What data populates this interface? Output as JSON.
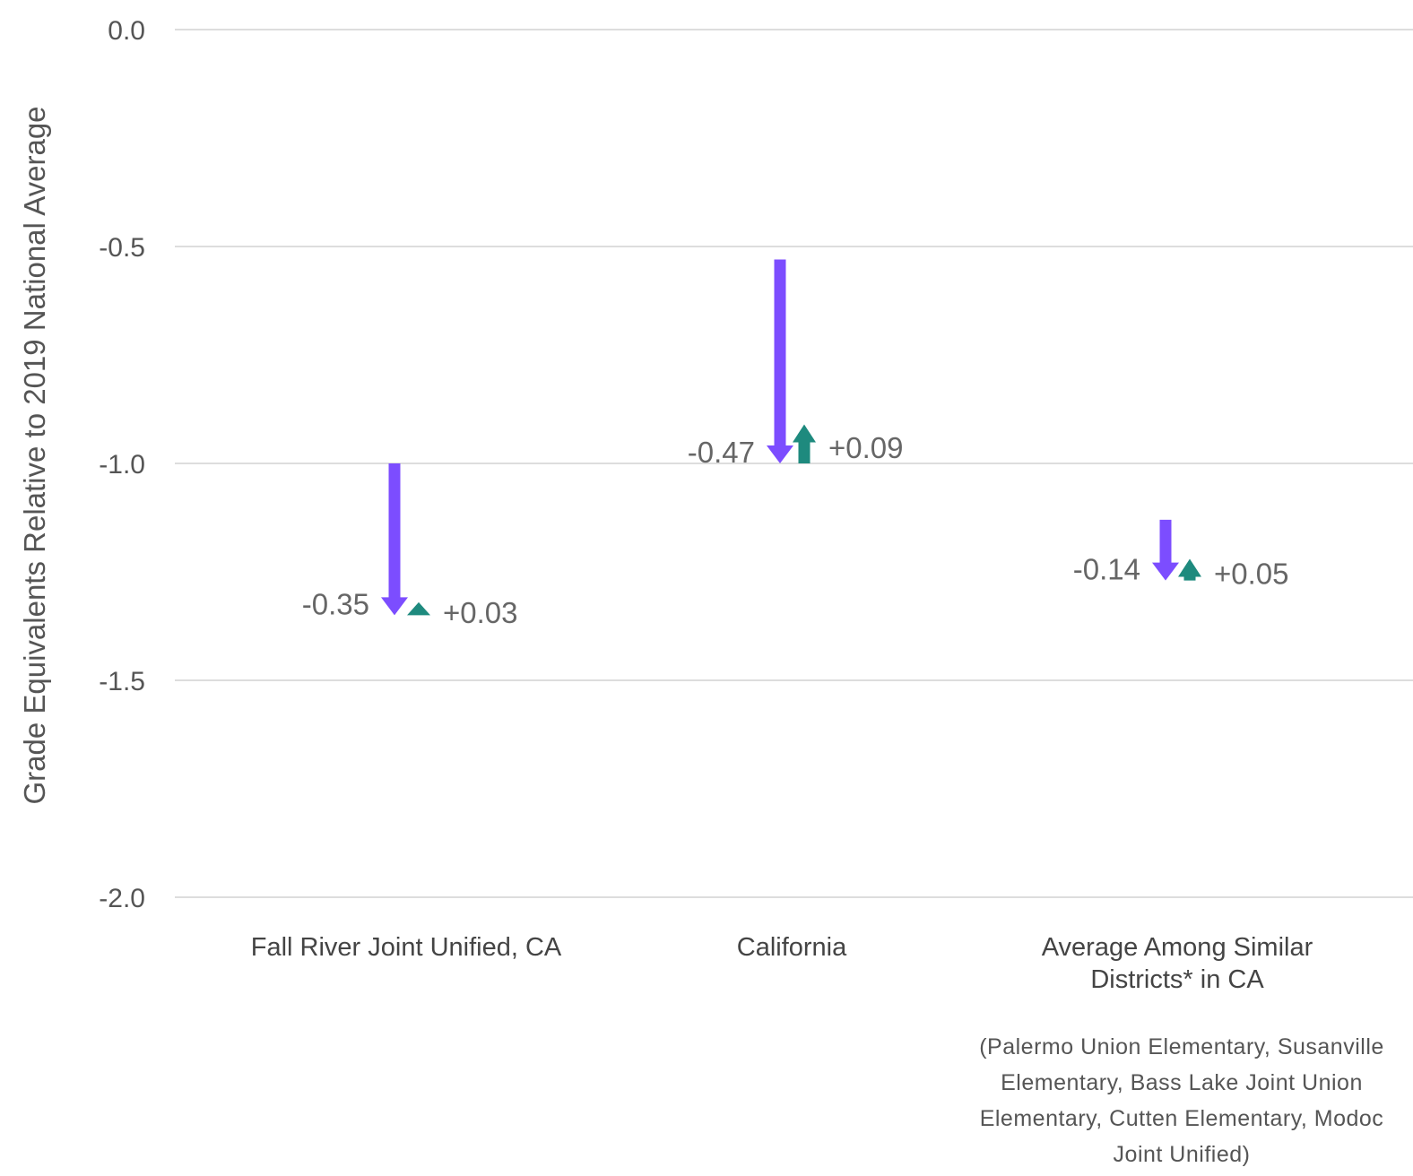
{
  "chart_data": {
    "type": "arrow",
    "ylabel": "Grade Equivalents Relative to 2019 National Average",
    "ylim": [
      -2.0,
      0.0
    ],
    "yticks": [
      0.0,
      -0.5,
      -1.0,
      -1.5,
      -2.0
    ],
    "ytick_labels": [
      "0.0",
      "-0.5",
      "-1.0",
      "-1.5",
      "-2.0"
    ],
    "grid": true,
    "colors": {
      "decline": "#7c4dff",
      "recovery": "#1e8a7e"
    },
    "groups": [
      {
        "label_lines": [
          "Fall River Joint Unified, CA"
        ],
        "start": -1.0,
        "decline": -0.35,
        "decline_label": "-0.35",
        "recovery": 0.03,
        "recovery_label": "+0.03"
      },
      {
        "label_lines": [
          "California"
        ],
        "start": -0.53,
        "decline": -0.47,
        "decline_label": "-0.47",
        "recovery": 0.09,
        "recovery_label": "+0.09"
      },
      {
        "label_lines": [
          "Average Among Similar",
          "Districts* in CA"
        ],
        "start": -1.13,
        "decline": -0.14,
        "decline_label": "-0.14",
        "recovery": 0.05,
        "recovery_label": "+0.05"
      }
    ],
    "footnote_lines": [
      "(Palermo Union Elementary, Susanville",
      "Elementary, Bass Lake Joint Union",
      "Elementary, Cutten Elementary, Modoc",
      "Joint Unified)"
    ]
  }
}
